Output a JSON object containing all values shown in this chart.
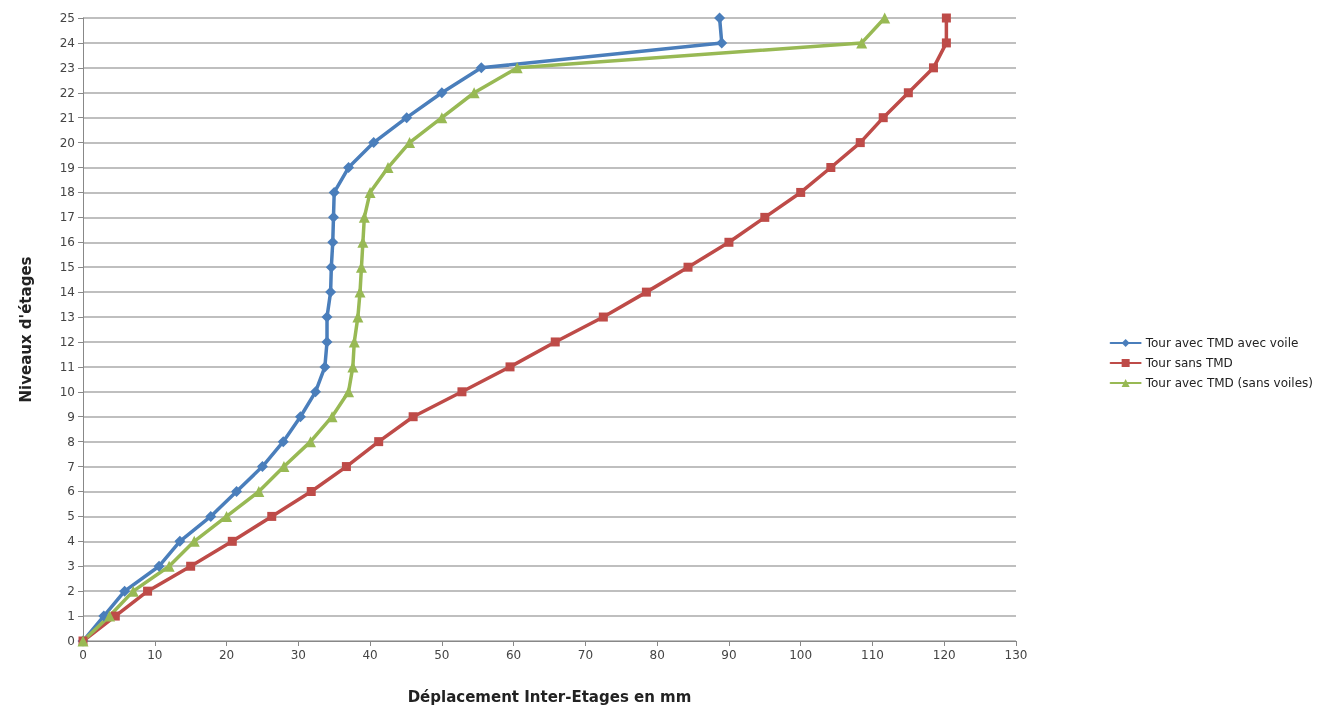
{
  "chart_data": {
    "type": "line",
    "xlabel": "Déplacement Inter-Etages en mm",
    "ylabel": "Niveaux d'étages",
    "xlim": [
      0,
      130
    ],
    "xticks": [
      0,
      10,
      20,
      30,
      40,
      50,
      60,
      70,
      80,
      90,
      100,
      110,
      120,
      130
    ],
    "ylim": [
      0,
      25
    ],
    "yticks": [
      0,
      1,
      2,
      3,
      4,
      5,
      6,
      7,
      8,
      9,
      10,
      11,
      12,
      13,
      14,
      15,
      16,
      17,
      18,
      19,
      20,
      21,
      22,
      23,
      24,
      25
    ],
    "grid": "y",
    "legend": "right",
    "series": [
      {
        "name": "Tour avec TMD avec voile",
        "color": "#4a7ebb",
        "marker": "diamond",
        "x": [
          0,
          2.9,
          5.8,
          10.6,
          13.5,
          17.8,
          21.4,
          25,
          27.9,
          30.3,
          32.4,
          33.7,
          34,
          34,
          34.5,
          34.6,
          34.8,
          34.9,
          35,
          37,
          40.5,
          45.1,
          50,
          55.5,
          89,
          88.7
        ],
        "values": [
          0,
          1,
          2,
          3,
          4,
          5,
          6,
          7,
          8,
          9,
          10,
          11,
          12,
          13,
          14,
          15,
          16,
          17,
          18,
          19,
          20,
          21,
          22,
          23,
          24,
          25
        ]
      },
      {
        "name": "Tour sans TMD",
        "color": "#be4b48",
        "marker": "square",
        "x": [
          0,
          4.5,
          9,
          15,
          20.8,
          26.3,
          31.8,
          36.7,
          41.2,
          46,
          52.8,
          59.5,
          65.8,
          72.5,
          78.5,
          84.3,
          90,
          95,
          100,
          104.2,
          108.3,
          111.5,
          115,
          118.5,
          120.3,
          120.3
        ],
        "values": [
          0,
          1,
          2,
          3,
          4,
          5,
          6,
          7,
          8,
          9,
          10,
          11,
          12,
          13,
          14,
          15,
          16,
          17,
          18,
          19,
          20,
          21,
          22,
          23,
          24,
          25
        ]
      },
      {
        "name": "Tour avec TMD (sans voiles)",
        "color": "#98b954",
        "marker": "triangle",
        "x": [
          0,
          3.7,
          7,
          12,
          15.5,
          20,
          24.5,
          28,
          31.7,
          34.7,
          37,
          37.6,
          37.8,
          38.3,
          38.6,
          38.8,
          39,
          39.2,
          40,
          42.5,
          45.5,
          50,
          54.5,
          60.5,
          108.5,
          111.7
        ],
        "values": [
          0,
          1,
          2,
          3,
          4,
          5,
          6,
          7,
          8,
          9,
          10,
          11,
          12,
          13,
          14,
          15,
          16,
          17,
          18,
          19,
          20,
          21,
          22,
          23,
          24,
          25
        ]
      }
    ]
  }
}
